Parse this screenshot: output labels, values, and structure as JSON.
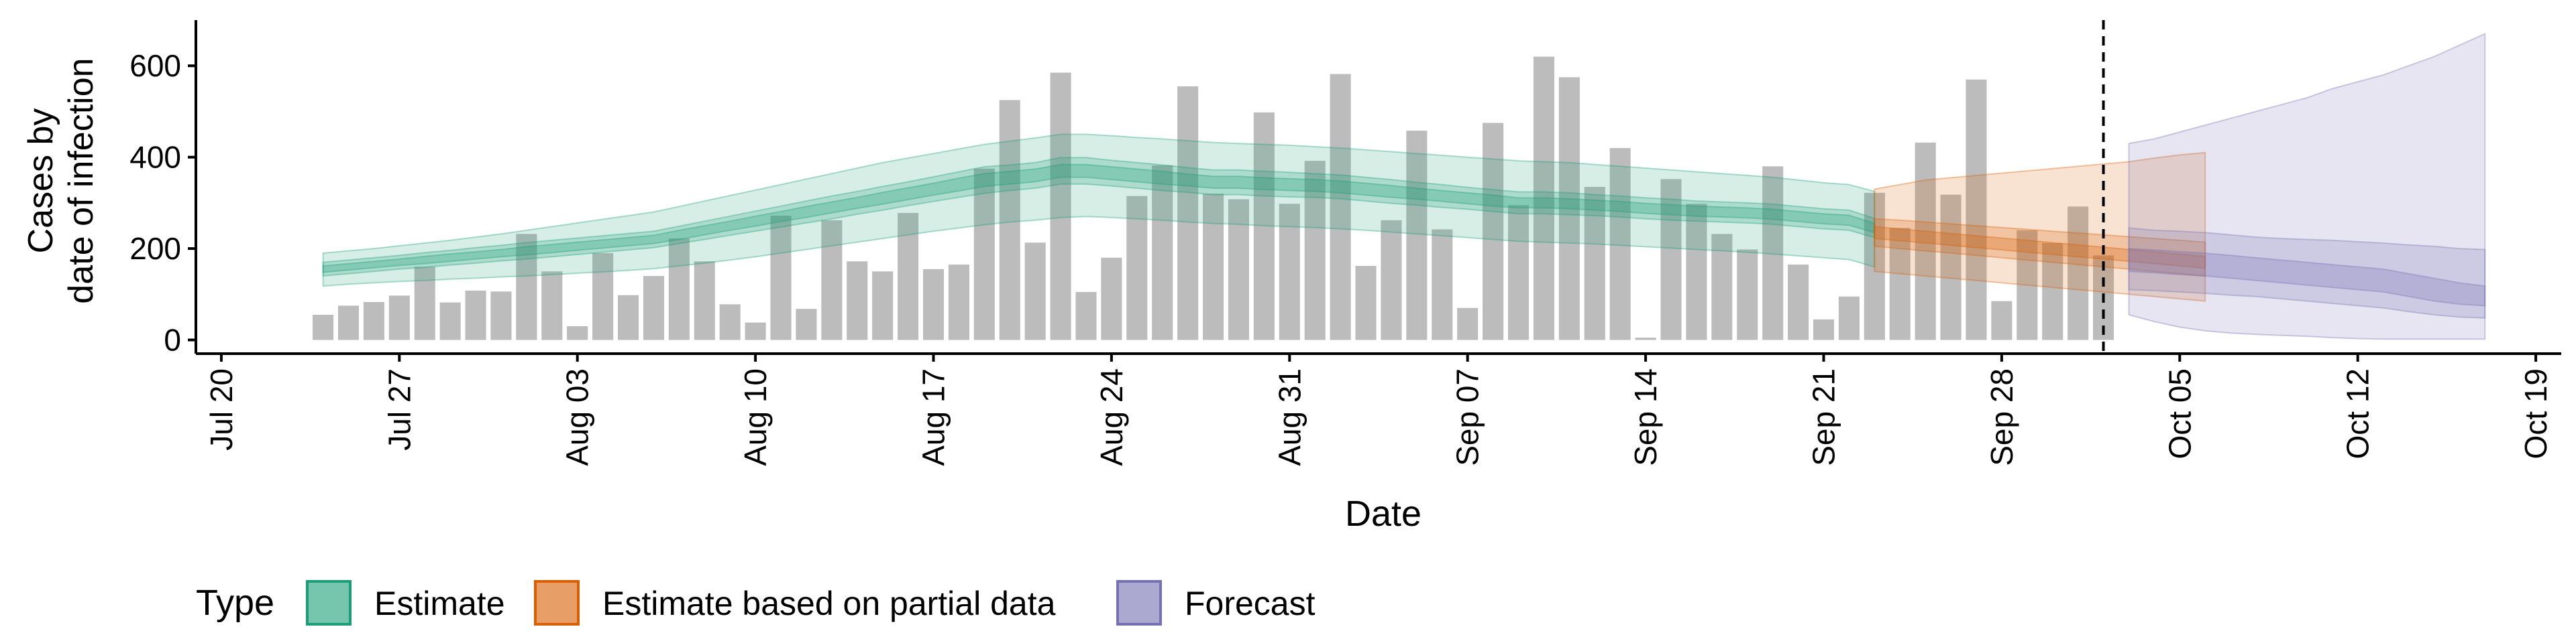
{
  "chart_data": {
    "type": "bar",
    "xlabel": "Date",
    "ylabel": [
      "Cases by",
      "date of infection"
    ],
    "x_range": [
      "2020-07-19",
      "2020-10-20"
    ],
    "ylim": [
      -30,
      700
    ],
    "y_ticks": [
      0,
      200,
      400,
      600
    ],
    "x_ticks": [
      {
        "date": "2020-07-20",
        "label": "Jul 20"
      },
      {
        "date": "2020-07-27",
        "label": "Jul 27"
      },
      {
        "date": "2020-08-03",
        "label": "Aug 03"
      },
      {
        "date": "2020-08-10",
        "label": "Aug 10"
      },
      {
        "date": "2020-08-17",
        "label": "Aug 17"
      },
      {
        "date": "2020-08-24",
        "label": "Aug 24"
      },
      {
        "date": "2020-08-31",
        "label": "Aug 31"
      },
      {
        "date": "2020-09-07",
        "label": "Sep 07"
      },
      {
        "date": "2020-09-14",
        "label": "Sep 14"
      },
      {
        "date": "2020-09-21",
        "label": "Sep 21"
      },
      {
        "date": "2020-09-28",
        "label": "Sep 28"
      },
      {
        "date": "2020-10-05",
        "label": "Oct 05"
      },
      {
        "date": "2020-10-12",
        "label": "Oct 12"
      },
      {
        "date": "2020-10-19",
        "label": "Oct 19"
      }
    ],
    "reference_line_date": "2020-10-02",
    "bars": {
      "start_date": "2020-07-24",
      "values": [
        55,
        75,
        83,
        97,
        160,
        82,
        108,
        106,
        232,
        150,
        30,
        190,
        98,
        140,
        222,
        172,
        78,
        38,
        272,
        68,
        262,
        172,
        150,
        278,
        155,
        165,
        375,
        525,
        213,
        585,
        105,
        180,
        315,
        382,
        555,
        320,
        308,
        498,
        298,
        392,
        582,
        162,
        262,
        458,
        242,
        70,
        475,
        295,
        620,
        575,
        335,
        420,
        5,
        352,
        298,
        232,
        198,
        380,
        165,
        45,
        95,
        322,
        245,
        432,
        318,
        570,
        85,
        240,
        212,
        292,
        185
      ]
    },
    "series": [
      {
        "name": "Estimate",
        "color": "#1b9e77",
        "start_date": "2020-07-24",
        "median": [
          155,
          160,
          165,
          170,
          175,
          180,
          185,
          190,
          195,
          200,
          205,
          210,
          215,
          220,
          230,
          240,
          250,
          260,
          270,
          280,
          290,
          300,
          310,
          320,
          330,
          340,
          350,
          355,
          360,
          370,
          370,
          365,
          360,
          355,
          350,
          345,
          345,
          342,
          340,
          338,
          335,
          330,
          325,
          320,
          315,
          310,
          305,
          300,
          300,
          298,
          295,
          292,
          288,
          285,
          282,
          280,
          278,
          275,
          270,
          265,
          262,
          245
        ],
        "lower90": [
          118,
          122,
          125,
          128,
          130,
          133,
          135,
          138,
          140,
          143,
          146,
          149,
          152,
          156,
          162,
          168,
          175,
          182,
          190,
          198,
          206,
          214,
          222,
          230,
          238,
          245,
          252,
          258,
          262,
          268,
          270,
          268,
          265,
          262,
          258,
          255,
          253,
          250,
          248,
          246,
          243,
          240,
          236,
          232,
          228,
          224,
          220,
          216,
          214,
          212,
          210,
          207,
          204,
          201,
          198,
          195,
          192,
          188,
          184,
          180,
          176,
          160
        ],
        "upper90": [
          190,
          195,
          200,
          206,
          212,
          218,
          225,
          232,
          240,
          248,
          256,
          264,
          272,
          280,
          292,
          304,
          316,
          328,
          340,
          352,
          364,
          376,
          388,
          398,
          408,
          418,
          428,
          435,
          442,
          450,
          450,
          447,
          443,
          440,
          436,
          432,
          430,
          428,
          426,
          423,
          420,
          416,
          412,
          408,
          404,
          400,
          396,
          392,
          390,
          388,
          384,
          380,
          376,
          372,
          368,
          364,
          360,
          356,
          350,
          344,
          340,
          325
        ],
        "lower50": [
          140,
          145,
          150,
          155,
          159,
          164,
          168,
          173,
          177,
          182,
          187,
          192,
          197,
          202,
          211,
          220,
          229,
          238,
          247,
          256,
          265,
          275,
          284,
          294,
          303,
          312,
          321,
          327,
          332,
          341,
          341,
          337,
          332,
          327,
          323,
          318,
          318,
          315,
          313,
          312,
          309,
          304,
          299,
          295,
          290,
          286,
          281,
          276,
          276,
          274,
          272,
          269,
          265,
          262,
          260,
          258,
          256,
          253,
          248,
          243,
          240,
          224
        ],
        "upper50": [
          170,
          175,
          180,
          185,
          191,
          196,
          202,
          207,
          213,
          218,
          223,
          228,
          233,
          238,
          249,
          260,
          271,
          282,
          293,
          304,
          315,
          325,
          336,
          346,
          357,
          368,
          379,
          383,
          388,
          399,
          399,
          393,
          388,
          383,
          377,
          372,
          372,
          369,
          367,
          364,
          361,
          356,
          351,
          345,
          340,
          334,
          329,
          324,
          324,
          322,
          318,
          315,
          311,
          308,
          304,
          302,
          300,
          297,
          292,
          287,
          284,
          266
        ],
        "lower20": [
          148,
          153,
          158,
          163,
          167,
          172,
          177,
          182,
          186,
          191,
          196,
          201,
          206,
          211,
          220,
          230,
          240,
          249,
          259,
          268,
          278,
          288,
          297,
          307,
          317,
          326,
          336,
          341,
          346,
          356,
          356,
          351,
          346,
          341,
          337,
          332,
          332,
          329,
          327,
          325,
          322,
          317,
          312,
          308,
          303,
          298,
          293,
          289,
          289,
          287,
          284,
          281,
          277,
          274,
          271,
          269,
          267,
          264,
          259,
          254,
          251,
          235
        ],
        "upper20": [
          162,
          167,
          172,
          177,
          183,
          188,
          193,
          198,
          204,
          209,
          214,
          219,
          224,
          229,
          240,
          250,
          260,
          271,
          281,
          292,
          302,
          312,
          323,
          333,
          343,
          354,
          364,
          369,
          374,
          384,
          384,
          379,
          374,
          369,
          363,
          358,
          358,
          355,
          353,
          351,
          348,
          343,
          338,
          332,
          327,
          322,
          317,
          311,
          311,
          309,
          306,
          303,
          299,
          296,
          293,
          291,
          289,
          286,
          281,
          276,
          273,
          255
        ]
      },
      {
        "name": "Estimate based on partial data",
        "color": "#d95f02",
        "start_date": "2020-09-23",
        "median": [
          235,
          230,
          225,
          220,
          215,
          210,
          205,
          200,
          195,
          190,
          185,
          180,
          175,
          170
        ],
        "lower90": [
          150,
          145,
          140,
          135,
          130,
          125,
          120,
          115,
          110,
          105,
          100,
          95,
          90,
          85
        ],
        "upper90": [
          330,
          340,
          350,
          355,
          360,
          365,
          370,
          375,
          380,
          385,
          390,
          398,
          405,
          410
        ],
        "lower50": [
          205,
          200,
          195,
          190,
          185,
          180,
          175,
          170,
          165,
          160,
          155,
          150,
          145,
          140
        ],
        "upper50": [
          265,
          262,
          258,
          254,
          250,
          246,
          242,
          238,
          234,
          230,
          226,
          222,
          218,
          214
        ],
        "lower20": [
          222,
          217,
          212,
          207,
          202,
          197,
          192,
          187,
          182,
          177,
          172,
          167,
          162,
          157
        ],
        "upper20": [
          248,
          243,
          238,
          233,
          228,
          223,
          218,
          213,
          208,
          203,
          198,
          193,
          188,
          183
        ]
      },
      {
        "name": "Forecast",
        "color": "#7570b3",
        "start_date": "2020-10-03",
        "median": [
          175,
          172,
          168,
          165,
          160,
          155,
          150,
          145,
          140,
          135,
          130,
          120,
          110,
          100,
          95
        ],
        "lower90": [
          55,
          40,
          28,
          20,
          15,
          12,
          10,
          8,
          5,
          3,
          2,
          2,
          2,
          2,
          2
        ],
        "upper90": [
          430,
          440,
          455,
          470,
          485,
          500,
          515,
          530,
          550,
          565,
          580,
          600,
          620,
          645,
          670
        ],
        "lower50": [
          110,
          108,
          105,
          102,
          98,
          95,
          90,
          85,
          80,
          75,
          70,
          62,
          55,
          50,
          48
        ],
        "upper50": [
          245,
          240,
          238,
          235,
          230,
          225,
          222,
          220,
          218,
          215,
          212,
          208,
          205,
          200,
          198
        ],
        "lower20": [
          150,
          147,
          143,
          140,
          135,
          130,
          125,
          120,
          115,
          110,
          105,
          95,
          85,
          78,
          75
        ],
        "upper20": [
          200,
          197,
          193,
          190,
          185,
          180,
          175,
          170,
          165,
          160,
          155,
          145,
          135,
          125,
          118
        ]
      }
    ],
    "legend": {
      "title": "Type",
      "position": "bottom",
      "entries": [
        "Estimate",
        "Estimate based on partial data",
        "Forecast"
      ]
    }
  }
}
